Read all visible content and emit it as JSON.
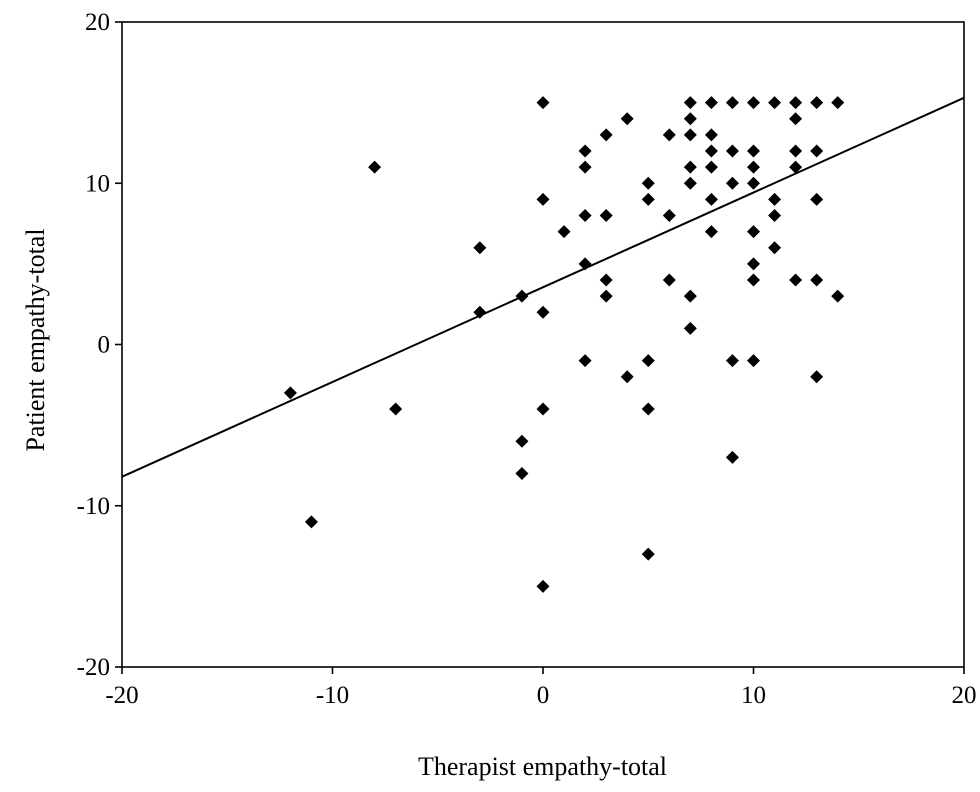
{
  "chart_data": {
    "type": "scatter",
    "title": "",
    "xlabel": "Therapist empathy-total",
    "ylabel": "Patient empathy-total",
    "xlim": [
      -20,
      20
    ],
    "ylim": [
      -20,
      20
    ],
    "xticks": [
      -20,
      -10,
      0,
      10,
      20
    ],
    "yticks": [
      -20,
      -10,
      0,
      10,
      20
    ],
    "xtick_labels": [
      "-20",
      "-10",
      "0",
      "10",
      "20"
    ],
    "ytick_labels": [
      "-20",
      "-10",
      "0",
      "10",
      "20"
    ],
    "grid": false,
    "marker": "diamond",
    "marker_color": "#000000",
    "fit_line": {
      "x": [
        -20,
        20
      ],
      "y": [
        -8.2,
        15.3
      ]
    },
    "points": [
      {
        "x": -12,
        "y": -3
      },
      {
        "x": -11,
        "y": -11
      },
      {
        "x": -8,
        "y": 11
      },
      {
        "x": -7,
        "y": -4
      },
      {
        "x": -3,
        "y": 6
      },
      {
        "x": -3,
        "y": 2
      },
      {
        "x": -1,
        "y": 3
      },
      {
        "x": -1,
        "y": -6
      },
      {
        "x": -1,
        "y": -8
      },
      {
        "x": 0,
        "y": 15
      },
      {
        "x": 0,
        "y": 9
      },
      {
        "x": 0,
        "y": 2
      },
      {
        "x": 0,
        "y": -4
      },
      {
        "x": 0,
        "y": -15
      },
      {
        "x": 1,
        "y": 7
      },
      {
        "x": 2,
        "y": 12
      },
      {
        "x": 2,
        "y": 11
      },
      {
        "x": 2,
        "y": 8
      },
      {
        "x": 2,
        "y": 5
      },
      {
        "x": 2,
        "y": -1
      },
      {
        "x": 3,
        "y": 13
      },
      {
        "x": 3,
        "y": 8
      },
      {
        "x": 3,
        "y": 4
      },
      {
        "x": 3,
        "y": 3
      },
      {
        "x": 4,
        "y": 14
      },
      {
        "x": 4,
        "y": -2
      },
      {
        "x": 5,
        "y": 10
      },
      {
        "x": 5,
        "y": 9
      },
      {
        "x": 5,
        "y": -1
      },
      {
        "x": 5,
        "y": -4
      },
      {
        "x": 5,
        "y": -13
      },
      {
        "x": 6,
        "y": 13
      },
      {
        "x": 6,
        "y": 8
      },
      {
        "x": 6,
        "y": 4
      },
      {
        "x": 7,
        "y": 15
      },
      {
        "x": 7,
        "y": 14
      },
      {
        "x": 7,
        "y": 13
      },
      {
        "x": 7,
        "y": 11
      },
      {
        "x": 7,
        "y": 10
      },
      {
        "x": 7,
        "y": 3
      },
      {
        "x": 7,
        "y": 1
      },
      {
        "x": 8,
        "y": 15
      },
      {
        "x": 8,
        "y": 13
      },
      {
        "x": 8,
        "y": 12
      },
      {
        "x": 8,
        "y": 11
      },
      {
        "x": 8,
        "y": 9
      },
      {
        "x": 8,
        "y": 7
      },
      {
        "x": 9,
        "y": 15
      },
      {
        "x": 9,
        "y": 12
      },
      {
        "x": 9,
        "y": 10
      },
      {
        "x": 9,
        "y": -1
      },
      {
        "x": 9,
        "y": -7
      },
      {
        "x": 10,
        "y": 15
      },
      {
        "x": 10,
        "y": 12
      },
      {
        "x": 10,
        "y": 11
      },
      {
        "x": 10,
        "y": 10
      },
      {
        "x": 10,
        "y": 7
      },
      {
        "x": 10,
        "y": 5
      },
      {
        "x": 10,
        "y": 4
      },
      {
        "x": 10,
        "y": -1
      },
      {
        "x": 11,
        "y": 15
      },
      {
        "x": 11,
        "y": 9
      },
      {
        "x": 11,
        "y": 8
      },
      {
        "x": 11,
        "y": 6
      },
      {
        "x": 12,
        "y": 15
      },
      {
        "x": 12,
        "y": 14
      },
      {
        "x": 12,
        "y": 12
      },
      {
        "x": 12,
        "y": 11
      },
      {
        "x": 12,
        "y": 4
      },
      {
        "x": 13,
        "y": 15
      },
      {
        "x": 13,
        "y": 12
      },
      {
        "x": 13,
        "y": 9
      },
      {
        "x": 13,
        "y": 4
      },
      {
        "x": 13,
        "y": -2
      },
      {
        "x": 14,
        "y": 15
      },
      {
        "x": 14,
        "y": 3
      }
    ]
  }
}
